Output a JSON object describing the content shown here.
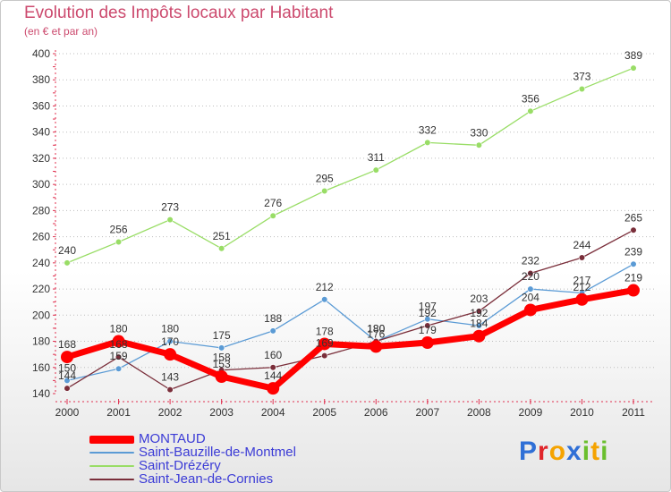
{
  "header": {
    "title": "Evolution des Impôts locaux par Habitant",
    "subtitle": "(en € et par an)"
  },
  "logo": {
    "text": "Proxiti",
    "letters": [
      {
        "ch": "P",
        "color": "#2f6fd6"
      },
      {
        "ch": "r",
        "color": "#e0252a"
      },
      {
        "ch": "o",
        "color": "#f5a300"
      },
      {
        "ch": "x",
        "color": "#2f6fd6"
      },
      {
        "ch": "i",
        "color": "#6abf2e"
      },
      {
        "ch": "t",
        "color": "#f5a300"
      },
      {
        "ch": "i",
        "color": "#6abf2e"
      }
    ]
  },
  "chart_data": {
    "type": "line",
    "title": "Evolution des Impôts locaux par Habitant",
    "subtitle": "(en € et par an)",
    "x": [
      "2000",
      "2001",
      "2002",
      "2003",
      "2004",
      "2005",
      "2006",
      "2007",
      "2008",
      "2009",
      "2010",
      "2011"
    ],
    "y_ticks": [
      140,
      160,
      180,
      200,
      220,
      240,
      260,
      280,
      300,
      320,
      340,
      360,
      380,
      400
    ],
    "ylim": [
      140,
      400
    ],
    "grid": "horizontal dotted",
    "legend_position": "bottom-left",
    "series": [
      {
        "name": "MONTAUD",
        "color": "#ff0000",
        "emphasis": true,
        "values": [
          168,
          180,
          170,
          153,
          144,
          178,
          176,
          179,
          184,
          204,
          212,
          219
        ],
        "labels": [
          "168",
          "180",
          "170",
          "153",
          "144",
          "178",
          "176",
          "179",
          "184",
          "204",
          "212",
          "219"
        ]
      },
      {
        "name": "Saint-Bauzille-de-Montmel",
        "color": "#5b9bd5",
        "values": [
          150,
          159,
          180,
          175,
          188,
          212,
          180,
          197,
          192,
          220,
          217,
          239
        ],
        "labels": [
          "150",
          "159",
          "180",
          "175",
          "188",
          "212",
          "180",
          "197",
          "192",
          "220",
          "217",
          "239"
        ]
      },
      {
        "name": "Saint-Drézéry",
        "color": "#99dd66",
        "values": [
          240,
          256,
          273,
          251,
          276,
          295,
          311,
          332,
          330,
          356,
          373,
          389
        ],
        "labels": [
          "240",
          "256",
          "273",
          "251",
          "276",
          "295",
          "311",
          "332",
          "330",
          "356",
          "373",
          "389"
        ]
      },
      {
        "name": "Saint-Jean-de-Cornies",
        "color": "#7a2e3a",
        "values": [
          144,
          168,
          143,
          158,
          160,
          169,
          180,
          192,
          203,
          232,
          244,
          265
        ],
        "labels": [
          "144",
          "168",
          "143",
          "158",
          "160",
          "169",
          "180",
          "192",
          "203",
          "232",
          "244",
          "265"
        ]
      }
    ]
  }
}
